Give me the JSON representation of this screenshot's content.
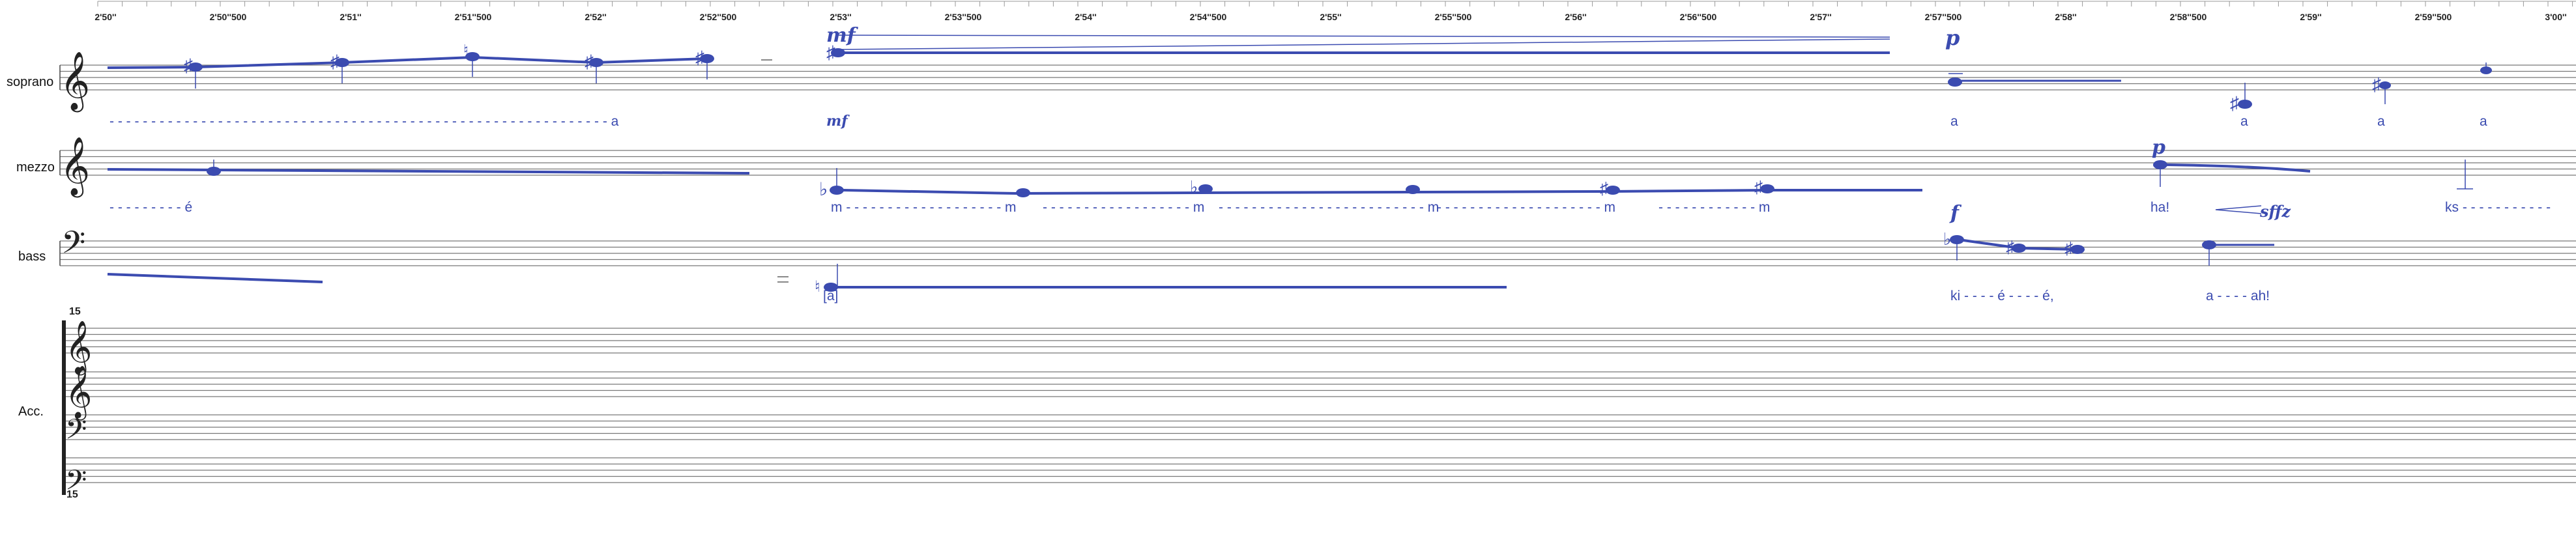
{
  "timeline": {
    "labels": [
      "2'50''",
      "2'50''500",
      "2'51''",
      "2'51''500",
      "2'52''",
      "2'52''500",
      "2'53''",
      "2'53''500",
      "2'54''",
      "2'54''500",
      "2'55''",
      "2'55''500",
      "2'56''",
      "2'56''500",
      "2'57''",
      "2'57''500",
      "2'58''",
      "2'58''500",
      "2'59''",
      "2'59''500",
      "3'00''"
    ]
  },
  "instruments": {
    "soprano": "soprano",
    "mezzo": "mezzo",
    "bass": "bass",
    "acc": "Acc."
  },
  "accompaniment": {
    "ottava_top": "15",
    "ottava_bottom": "15"
  },
  "dynamics": {
    "soprano_mf": "mf",
    "soprano_mf_lyric": "mf",
    "soprano_p": "p",
    "mezzo_p": "p",
    "bass_f": "f",
    "mezzo_sffz": "sffz"
  },
  "lyrics": {
    "soprano": [
      {
        "text": "- - - - - - - - - - - - - - - - - - - - - - - - - - - - - - - - - - - - - - - - - - - - - - - - - - - - - - - - - - - - a"
      },
      {
        "text": "a"
      },
      {
        "text": "a"
      },
      {
        "text": "a"
      },
      {
        "text": "a"
      }
    ],
    "mezzo": [
      {
        "text": "- - - - - - - - - é"
      },
      {
        "text": "m - - - - - - - - - - - - - - - - - - - m"
      },
      {
        "text": "- - - - - - - - - - - - - - - - - - m"
      },
      {
        "text": "- - - - - - - - - - - - - - - - - - - - - - - - - m"
      },
      {
        "text": "- - - - - - - - - - - - - - - - - - - - m"
      },
      {
        "text": "- - - - - - - - - - - - m"
      },
      {
        "text": "ha!"
      },
      {
        "text": "ks - - - - - - - - - - -"
      }
    ],
    "bass": [
      {
        "text": "[a]"
      },
      {
        "text": "ki - - - - é - - - - é,"
      },
      {
        "text": "a - - - - ah!"
      }
    ]
  },
  "icons": {
    "treble": "treble-clef-icon",
    "bass": "bass-clef-icon",
    "sharp": "sharp-icon",
    "flat": "flat-icon",
    "natural": "natural-icon"
  },
  "colors": {
    "ink": "#3b4bb0",
    "staff": "#777777"
  }
}
